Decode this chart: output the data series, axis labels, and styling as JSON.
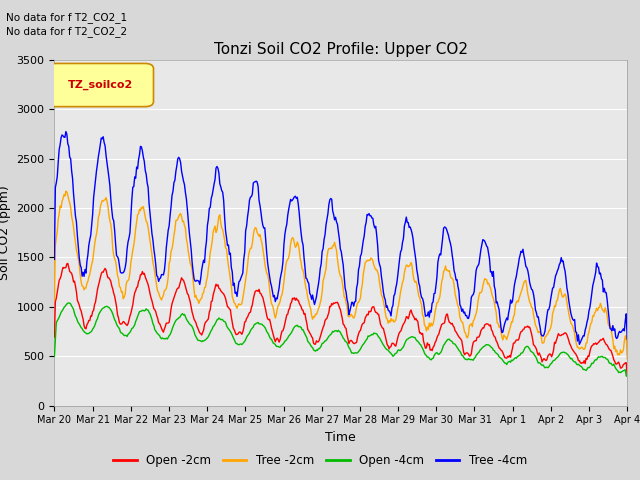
{
  "title": "Tonzi Soil CO2 Profile: Upper CO2",
  "xlabel": "Time",
  "ylabel": "Soil CO2 (ppm)",
  "annotation_lines": [
    "No data for f T2_CO2_1",
    "No data for f T2_CO2_2"
  ],
  "legend_label": "TZ_soilco2",
  "ylim": [
    0,
    3500
  ],
  "yticks": [
    0,
    500,
    1000,
    1500,
    2000,
    2500,
    3000,
    3500
  ],
  "series": {
    "open_2cm": {
      "label": "Open -2cm",
      "color": "#ff0000"
    },
    "tree_2cm": {
      "label": "Tree -2cm",
      "color": "#ffa500"
    },
    "open_4cm": {
      "label": "Open -4cm",
      "color": "#00bb00"
    },
    "tree_4cm": {
      "label": "Tree -4cm",
      "color": "#0000ff"
    }
  },
  "background_color": "#d8d8d8",
  "plot_bg_color": "#e8e8e8",
  "grid_color": "#ffffff",
  "tick_labels": [
    "Mar 20",
    "Mar 21",
    "Mar 22",
    "Mar 23",
    "Mar 24",
    "Mar 25",
    "Mar 26",
    "Mar 27",
    "Mar 28",
    "Mar 29",
    "Mar 30",
    "Mar 31",
    "Apr 1",
    "Apr 2",
    "Apr 3",
    "Apr 4"
  ]
}
